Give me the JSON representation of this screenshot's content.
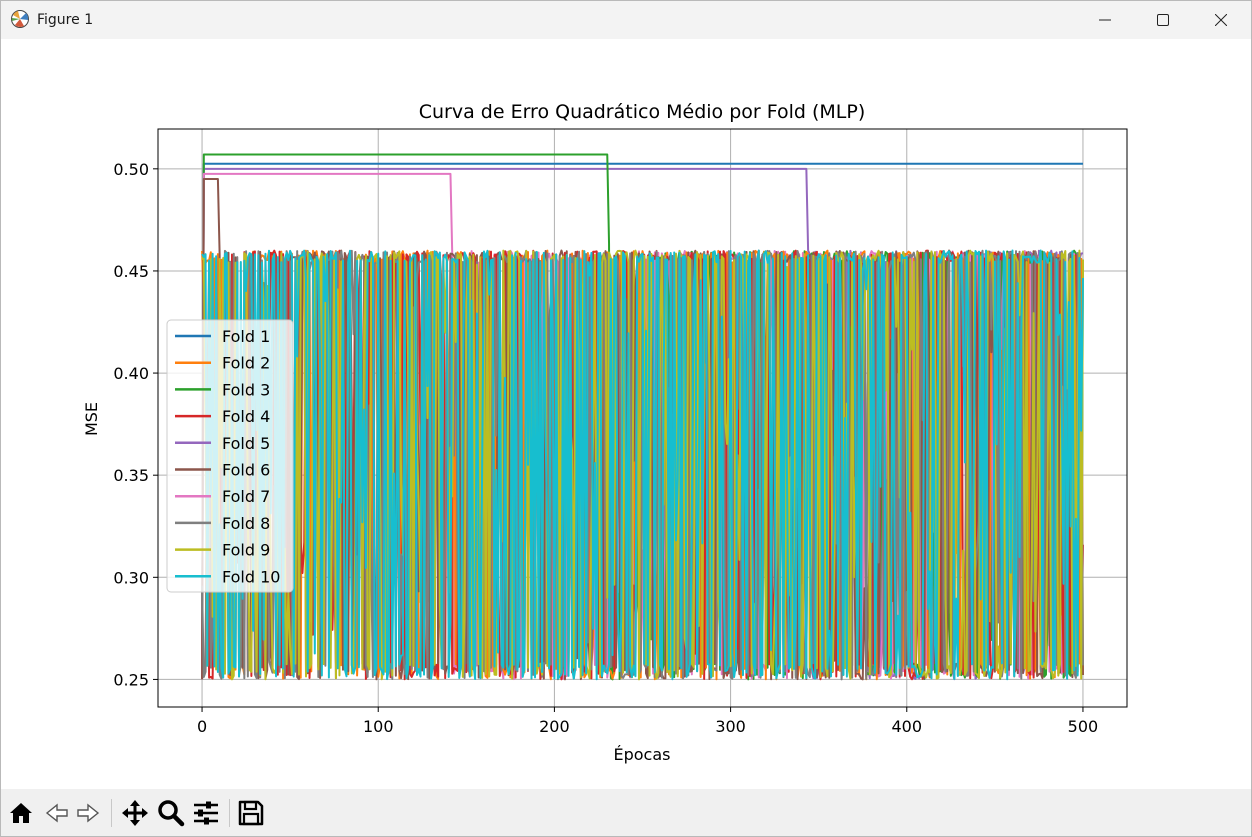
{
  "window": {
    "title": "Figure 1",
    "buttons": [
      "minimize",
      "maximize",
      "close"
    ]
  },
  "toolbar": {
    "buttons": [
      {
        "name": "home",
        "icon": "home-icon"
      },
      {
        "name": "back",
        "icon": "back-arrow-icon"
      },
      {
        "name": "forward",
        "icon": "forward-arrow-icon"
      },
      {
        "name": "pan",
        "icon": "move-icon"
      },
      {
        "name": "zoom",
        "icon": "zoom-icon"
      },
      {
        "name": "configure-subplots",
        "icon": "sliders-icon"
      },
      {
        "name": "save",
        "icon": "save-icon"
      }
    ]
  },
  "chart_data": {
    "type": "line",
    "title": "Curva de Erro Quadrático Médio por Fold (MLP)",
    "xlabel": "Épocas",
    "ylabel": "MSE",
    "xlim": [
      -25,
      525
    ],
    "ylim": [
      0.2365,
      0.5195
    ],
    "xticks": [
      0,
      100,
      200,
      300,
      400,
      500
    ],
    "xtick_labels": [
      "0",
      "100",
      "200",
      "300",
      "400",
      "500"
    ],
    "yticks": [
      0.25,
      0.3,
      0.35,
      0.4,
      0.45,
      0.5
    ],
    "ytick_labels": [
      "0.25",
      "0.30",
      "0.35",
      "0.40",
      "0.45",
      "0.50"
    ],
    "grid": true,
    "legend_placement": "center-left",
    "epochs": 500,
    "series": [
      {
        "name": "Fold 1",
        "color": "#1f77b4",
        "plateau": 0.5025,
        "plateau_end": 500,
        "oscillating": false
      },
      {
        "name": "Fold 2",
        "color": "#ff7f0e",
        "plateau": null,
        "plateau_end": 0,
        "oscillating": true
      },
      {
        "name": "Fold 3",
        "color": "#2ca02c",
        "plateau": 0.507,
        "plateau_end": 230,
        "oscillating": true
      },
      {
        "name": "Fold 4",
        "color": "#d62728",
        "plateau": null,
        "plateau_end": 0,
        "oscillating": true
      },
      {
        "name": "Fold 5",
        "color": "#9467bd",
        "plateau": 0.5,
        "plateau_end": 343,
        "oscillating": true
      },
      {
        "name": "Fold 6",
        "color": "#8c564b",
        "plateau": 0.495,
        "plateau_end": 9,
        "oscillating": true
      },
      {
        "name": "Fold 7",
        "color": "#e377c2",
        "plateau": 0.4975,
        "plateau_end": 141,
        "oscillating": true
      },
      {
        "name": "Fold 8",
        "color": "#7f7f7f",
        "plateau": null,
        "plateau_end": 0,
        "oscillating": true
      },
      {
        "name": "Fold 9",
        "color": "#bcbd22",
        "plateau": null,
        "plateau_end": 0,
        "oscillating": true
      },
      {
        "name": "Fold 10",
        "color": "#17becf",
        "plateau": null,
        "plateau_end": 0,
        "oscillating": true
      }
    ],
    "oscillation_range": [
      0.25,
      0.46
    ]
  }
}
